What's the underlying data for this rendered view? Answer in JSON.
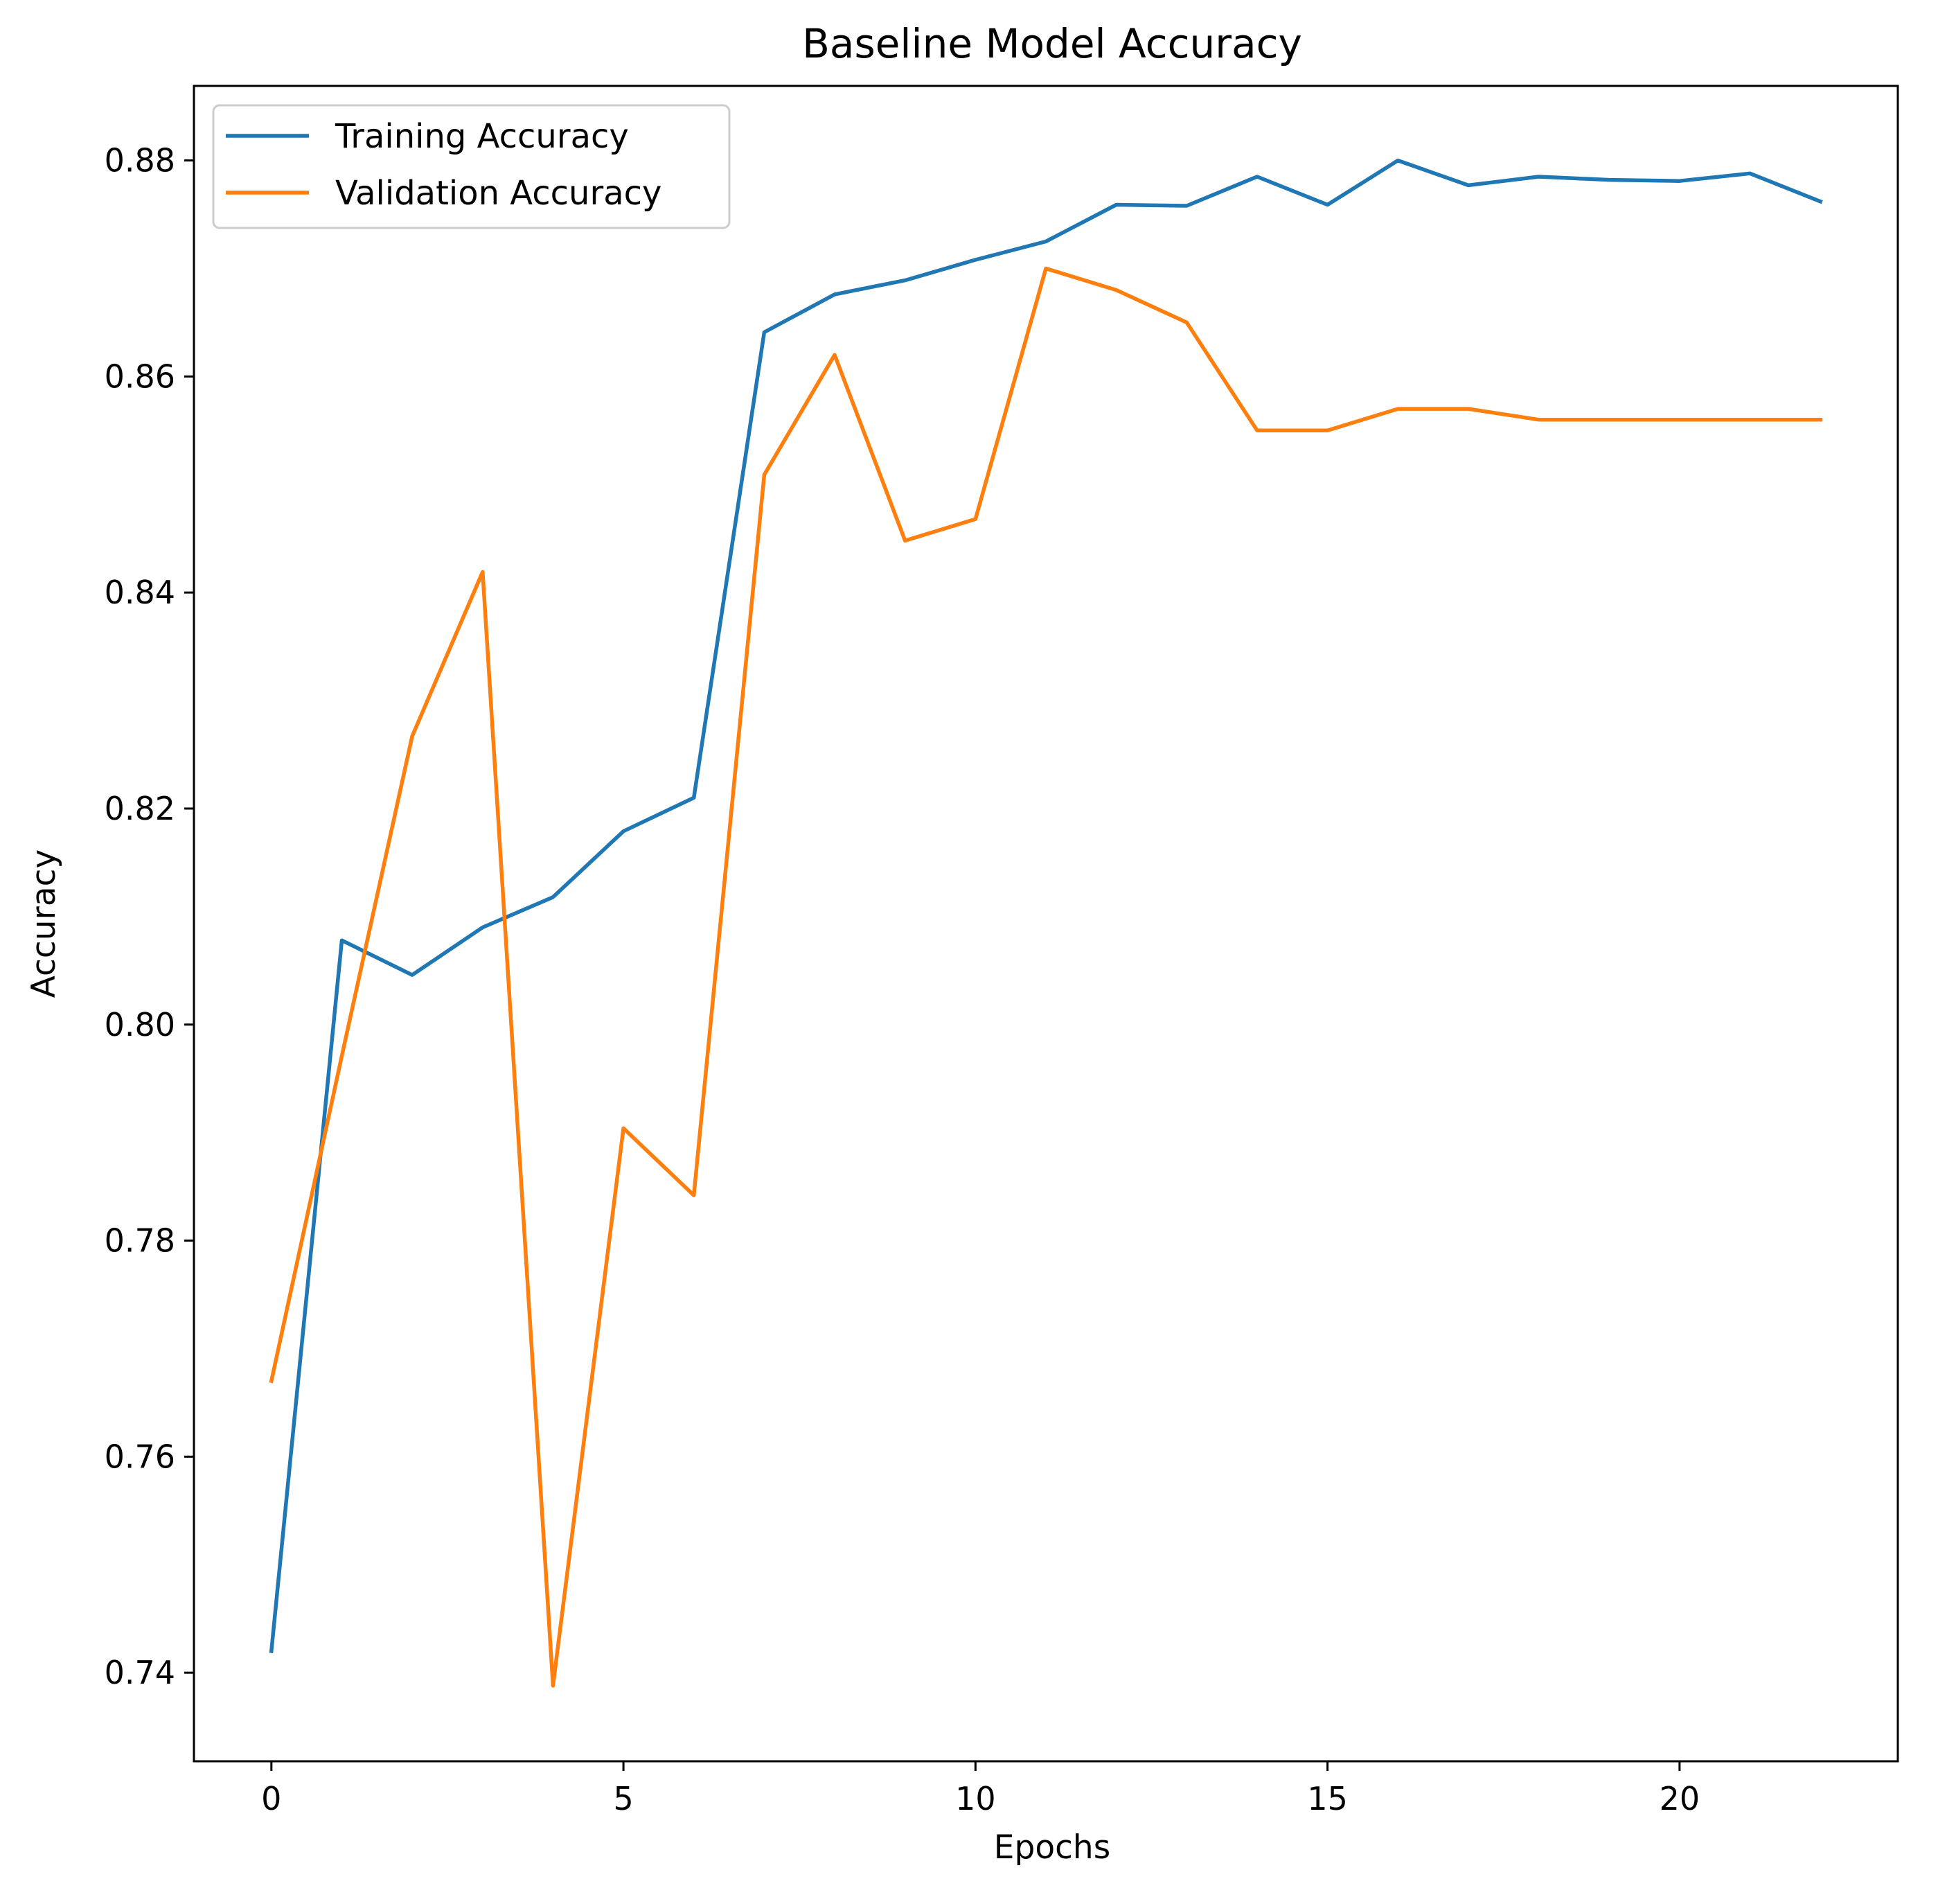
{
  "chart_data": {
    "type": "line",
    "title": "Baseline Model Accuracy",
    "xlabel": "Epochs",
    "ylabel": "Accuracy",
    "xlim": [
      -1.1,
      23.1
    ],
    "ylim": [
      0.7318,
      0.8869
    ],
    "xticks": [
      0,
      5,
      10,
      15,
      20
    ],
    "xtick_labels": [
      "0",
      "5",
      "10",
      "15",
      "20"
    ],
    "yticks": [
      0.74,
      0.76,
      0.78,
      0.8,
      0.82,
      0.84,
      0.86,
      0.88
    ],
    "ytick_labels": [
      "0.74",
      "0.76",
      "0.78",
      "0.80",
      "0.82",
      "0.84",
      "0.86",
      "0.88"
    ],
    "grid": false,
    "legend_position": "upper left",
    "x": [
      0,
      1,
      2,
      3,
      4,
      5,
      6,
      7,
      8,
      9,
      10,
      11,
      12,
      13,
      14,
      15,
      16,
      17,
      18,
      19,
      20,
      21,
      22
    ],
    "series": [
      {
        "name": "Training Accuracy",
        "color": "#1f77b4",
        "values": [
          0.742,
          0.8078,
          0.8046,
          0.809,
          0.8118,
          0.8179,
          0.821,
          0.8641,
          0.8676,
          0.8689,
          0.8708,
          0.8725,
          0.8759,
          0.8758,
          0.8785,
          0.8759,
          0.88,
          0.8777,
          0.8785,
          0.8782,
          0.8781,
          0.8788,
          0.8762
        ]
      },
      {
        "name": "Validation Accuracy",
        "color": "#ff7f0e",
        "values": [
          0.767,
          0.7971,
          0.8267,
          0.8419,
          0.7388,
          0.7904,
          0.7842,
          0.8509,
          0.862,
          0.8448,
          0.8468,
          0.87,
          0.868,
          0.865,
          0.855,
          0.855,
          0.857,
          0.857,
          0.856,
          0.856,
          0.856,
          0.856,
          0.856
        ]
      }
    ]
  }
}
